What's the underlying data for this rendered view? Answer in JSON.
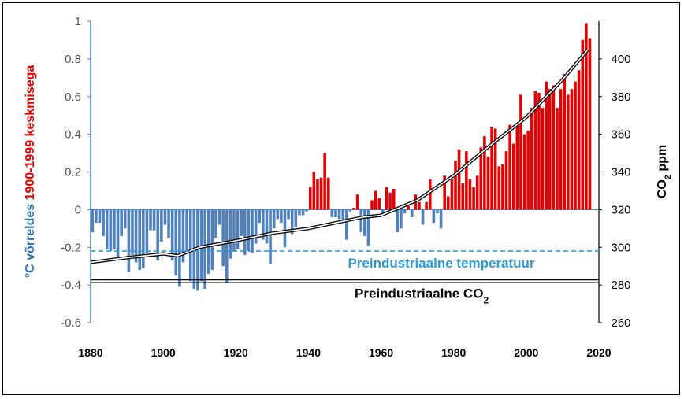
{
  "chart_data": {
    "type": "bar",
    "left_axis": {
      "label_parts": [
        {
          "text": "°C võrreldes ",
          "color": "#2e75b6"
        },
        {
          "text": "1900-1999 keskmisega",
          "color": "#e60000"
        }
      ],
      "ylim": [
        -0.6,
        1.0
      ],
      "ticks": [
        -0.6,
        -0.4,
        -0.2,
        0,
        0.2,
        0.4,
        0.6,
        0.8,
        1
      ]
    },
    "right_axis": {
      "label_main": "CO",
      "label_sub": "2",
      "label_tail": " ppm",
      "ylim": [
        260,
        420
      ],
      "ticks": [
        260,
        280,
        300,
        320,
        340,
        360,
        380,
        400
      ]
    },
    "x_ticks": [
      1880,
      1900,
      1920,
      1940,
      1960,
      1980,
      2000,
      2020
    ],
    "xlim": [
      1880,
      2020
    ],
    "colors": {
      "positive": "#e60000",
      "negative": "#4f81bd",
      "co2_line": "#000000",
      "ref_temp": "#2e9bd6"
    },
    "temperature_anomaly": {
      "years_start": 1880,
      "values": [
        -0.12,
        -0.07,
        -0.07,
        -0.14,
        -0.21,
        -0.22,
        -0.21,
        -0.26,
        -0.14,
        -0.1,
        -0.33,
        -0.24,
        -0.28,
        -0.32,
        -0.31,
        -0.23,
        -0.11,
        -0.11,
        -0.27,
        -0.17,
        -0.08,
        -0.15,
        -0.27,
        -0.35,
        -0.41,
        -0.28,
        -0.23,
        -0.38,
        -0.42,
        -0.43,
        -0.38,
        -0.42,
        -0.34,
        -0.32,
        -0.15,
        -0.08,
        -0.3,
        -0.39,
        -0.26,
        -0.22,
        -0.21,
        -0.14,
        -0.24,
        -0.22,
        -0.23,
        -0.18,
        -0.07,
        -0.16,
        -0.18,
        -0.29,
        -0.1,
        -0.05,
        -0.07,
        -0.2,
        -0.05,
        -0.13,
        -0.09,
        -0.03,
        -0.03,
        -0.01,
        0.12,
        0.2,
        0.16,
        0.17,
        0.3,
        0.17,
        -0.04,
        -0.04,
        -0.05,
        -0.07,
        -0.16,
        -0.01,
        0.01,
        0.08,
        -0.12,
        -0.14,
        -0.19,
        0.05,
        0.1,
        0.06,
        -0.02,
        0.12,
        0.09,
        0.11,
        -0.12,
        -0.1,
        -0.02,
        0.02,
        -0.04,
        0.08,
        0.04,
        -0.08,
        0.04,
        0.16,
        -0.07,
        -0.02,
        -0.1,
        0.18,
        0.07,
        0.16,
        0.26,
        0.32,
        0.14,
        0.31,
        0.16,
        0.12,
        0.18,
        0.33,
        0.39,
        0.28,
        0.44,
        0.43,
        0.23,
        0.24,
        0.31,
        0.45,
        0.35,
        0.46,
        0.61,
        0.4,
        0.42,
        0.54,
        0.63,
        0.62,
        0.54,
        0.68,
        0.64,
        0.66,
        0.54,
        0.64,
        0.72,
        0.61,
        0.64,
        0.68,
        0.74,
        0.9,
        0.99,
        0.91
      ]
    },
    "co2_ppm": {
      "years": [
        1880,
        1890,
        1900,
        1904,
        1910,
        1920,
        1930,
        1940,
        1950,
        1955,
        1960,
        1970,
        1980,
        1990,
        2000,
        2010,
        2017
      ],
      "values": [
        292,
        294.5,
        296.5,
        295.5,
        300,
        303.5,
        307.5,
        310,
        314,
        316,
        317,
        325,
        338,
        354,
        369,
        389,
        405
      ]
    },
    "reference_lines": [
      {
        "label": "Preindustriaalne temperatuur",
        "axis": "left",
        "value": -0.22,
        "style": "dashed",
        "color": "#2e9bd6"
      },
      {
        "label_main": "Preindustriaalne CO",
        "label_sub": "2",
        "axis": "right",
        "value": 282,
        "style": "double",
        "color": "#000000"
      }
    ]
  }
}
